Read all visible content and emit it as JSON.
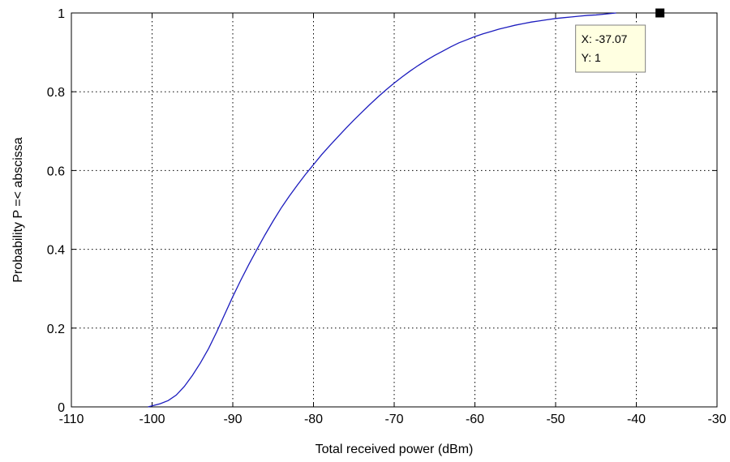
{
  "chart_data": {
    "type": "line",
    "title": "",
    "xlabel": "Total received power (dBm)",
    "ylabel": "Probability P =< abscissa",
    "xlim": [
      -110,
      -30
    ],
    "ylim": [
      0,
      1
    ],
    "x_ticks": [
      -110,
      -100,
      -90,
      -80,
      -70,
      -60,
      -50,
      -40,
      -30
    ],
    "y_ticks": [
      0,
      0.2,
      0.4,
      0.6,
      0.8,
      1
    ],
    "x_tick_labels": [
      "-110",
      "-100",
      "-90",
      "-80",
      "-70",
      "-60",
      "-50",
      "-40",
      "-30"
    ],
    "y_tick_labels": [
      "0",
      "0.2",
      "0.4",
      "0.6",
      "0.8",
      "1"
    ],
    "grid": true,
    "line_color": "#1c1cbe",
    "series": [
      {
        "x": [
          -100.5,
          -99,
          -98,
          -97,
          -96,
          -95,
          -94,
          -93,
          -92,
          -91,
          -90,
          -89,
          -88,
          -87,
          -86,
          -85,
          -84,
          -83,
          -82,
          -81,
          -80,
          -79,
          -78,
          -77,
          -76,
          -75,
          -74,
          -73,
          -72,
          -71,
          -70,
          -69,
          -68,
          -67,
          -66,
          -65,
          -64,
          -63,
          -62,
          -61,
          -60,
          -59,
          -58,
          -57,
          -56,
          -55,
          -54,
          -53,
          -52,
          -51,
          -50,
          -49,
          -48,
          -47,
          -46,
          -45,
          -44,
          -43,
          -42.5
        ],
        "y": [
          0,
          0.008,
          0.016,
          0.03,
          0.052,
          0.08,
          0.112,
          0.148,
          0.19,
          0.235,
          0.28,
          0.322,
          0.362,
          0.4,
          0.437,
          0.472,
          0.505,
          0.535,
          0.563,
          0.59,
          0.615,
          0.64,
          0.663,
          0.685,
          0.707,
          0.728,
          0.748,
          0.768,
          0.787,
          0.805,
          0.822,
          0.838,
          0.853,
          0.867,
          0.88,
          0.892,
          0.903,
          0.914,
          0.924,
          0.932,
          0.94,
          0.947,
          0.953,
          0.959,
          0.964,
          0.969,
          0.973,
          0.977,
          0.98,
          0.983,
          0.986,
          0.988,
          0.99,
          0.992,
          0.994,
          0.995,
          0.997,
          0.999,
          1.0
        ]
      }
    ],
    "datatip": {
      "x": -37.07,
      "y": 1,
      "label_x": "X: -37.07",
      "label_y": "Y: 1"
    }
  }
}
